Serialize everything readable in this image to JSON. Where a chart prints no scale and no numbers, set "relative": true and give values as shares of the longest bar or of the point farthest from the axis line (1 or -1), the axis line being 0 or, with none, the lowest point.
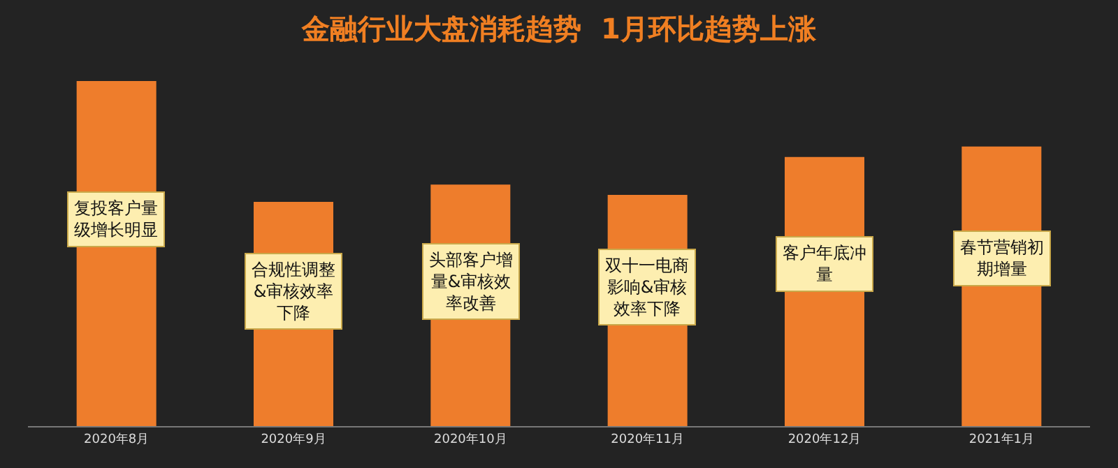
{
  "chart_data": {
    "type": "bar",
    "title": "金融行业大盘消耗趋势  1月环比趋势上涨",
    "relative": true,
    "color": "#ee7d2c",
    "categories": [
      "2020年8月",
      "2020年9月",
      "2020年10月",
      "2020年11月",
      "2020年12月",
      "2021年1月"
    ],
    "values": [
      1,
      0.65,
      0.7,
      0.67,
      0.78,
      0.81
    ],
    "annotations": [
      "复投客户量级增长明显",
      "合规性调整&审核效率下降",
      "头部客户增量&审核效率改善",
      "双十一电商影响&审核效率下降",
      "客户年底冲量",
      "春节营销初期增量"
    ]
  }
}
